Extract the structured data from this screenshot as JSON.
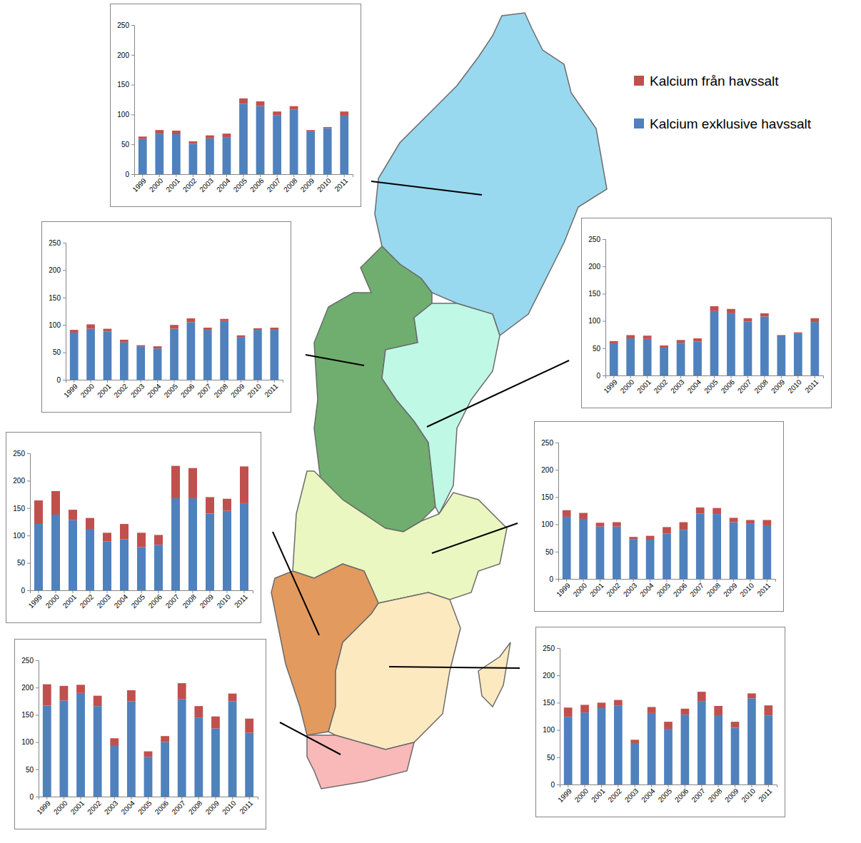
{
  "chart_data": [
    {
      "type": "bar",
      "stacked": true,
      "categories": [
        "1999",
        "2000",
        "2001",
        "2002",
        "2003",
        "2004",
        "2005",
        "2006",
        "2007",
        "2008",
        "2009",
        "2010",
        "2011"
      ],
      "ylim": [
        0,
        250
      ],
      "yticks": [
        0,
        50,
        100,
        150,
        200,
        250
      ],
      "series": [
        {
          "name": "Kalcium exklusive havssalt",
          "color": "#4f81bd",
          "values": [
            59,
            68,
            67,
            51,
            60,
            62,
            118,
            114,
            99,
            108,
            72,
            77,
            98
          ]
        },
        {
          "name": "Kalcium från havssalt",
          "color": "#c0504d",
          "values": [
            4,
            6,
            6,
            4,
            5,
            6,
            9,
            8,
            6,
            6,
            2,
            2,
            7
          ]
        }
      ]
    },
    {
      "type": "bar",
      "stacked": true,
      "categories": [
        "1999",
        "2000",
        "2001",
        "2002",
        "2003",
        "2004",
        "2005",
        "2006",
        "2007",
        "2008",
        "2009",
        "2010",
        "2011"
      ],
      "ylim": [
        0,
        250
      ],
      "yticks": [
        0,
        50,
        100,
        150,
        200,
        250
      ],
      "series": [
        {
          "color": "#4f81bd",
          "values": [
            59,
            68,
            67,
            51,
            60,
            62,
            118,
            114,
            99,
            108,
            72,
            77,
            98
          ]
        },
        {
          "color": "#c0504d",
          "values": [
            4,
            6,
            6,
            4,
            5,
            6,
            9,
            8,
            6,
            6,
            2,
            2,
            7
          ]
        }
      ]
    },
    {
      "type": "bar",
      "stacked": true,
      "categories": [
        "1999",
        "2000",
        "2001",
        "2002",
        "2003",
        "2004",
        "2005",
        "2006",
        "2007",
        "2008",
        "2009",
        "2010",
        "2011"
      ],
      "ylim": [
        0,
        250
      ],
      "yticks": [
        0,
        50,
        100,
        150,
        200,
        250
      ],
      "series": [
        {
          "color": "#4f81bd",
          "values": [
            86,
            93,
            88,
            68,
            61,
            57,
            93,
            105,
            91,
            107,
            78,
            91,
            91
          ]
        },
        {
          "color": "#c0504d",
          "values": [
            5,
            8,
            5,
            5,
            2,
            4,
            7,
            7,
            4,
            4,
            3,
            3,
            4
          ]
        }
      ]
    },
    {
      "type": "bar",
      "stacked": true,
      "categories": [
        "1999",
        "2000",
        "2001",
        "2002",
        "2003",
        "2004",
        "2005",
        "2006",
        "2007",
        "2008",
        "2009",
        "2010",
        "2011"
      ],
      "ylim": [
        0,
        250
      ],
      "yticks": [
        0,
        50,
        100,
        150,
        200,
        250
      ],
      "series": [
        {
          "color": "#4f81bd",
          "values": [
            114,
            110,
            96,
            96,
            73,
            72,
            83,
            90,
            120,
            119,
            104,
            102,
            97
          ]
        },
        {
          "color": "#c0504d",
          "values": [
            12,
            11,
            7,
            8,
            4,
            7,
            12,
            14,
            11,
            11,
            8,
            6,
            11
          ]
        }
      ]
    },
    {
      "type": "bar",
      "stacked": true,
      "categories": [
        "1999",
        "2000",
        "2001",
        "2002",
        "2003",
        "2004",
        "2005",
        "2006",
        "2007",
        "2008",
        "2009",
        "2010",
        "2011"
      ],
      "ylim": [
        0,
        250
      ],
      "yticks": [
        0,
        50,
        100,
        150,
        200,
        250
      ],
      "series": [
        {
          "color": "#4f81bd",
          "values": [
            121,
            138,
            128,
            112,
            89,
            93,
            79,
            83,
            168,
            168,
            140,
            145,
            159
          ]
        },
        {
          "color": "#c0504d",
          "values": [
            43,
            43,
            19,
            20,
            16,
            28,
            26,
            18,
            59,
            55,
            30,
            22,
            67
          ]
        }
      ]
    },
    {
      "type": "bar",
      "stacked": true,
      "categories": [
        "1999",
        "2000",
        "2001",
        "2002",
        "2003",
        "2004",
        "2005",
        "2006",
        "2007",
        "2008",
        "2009",
        "2010",
        "2011"
      ],
      "ylim": [
        0,
        250
      ],
      "yticks": [
        0,
        50,
        100,
        150,
        200,
        250
      ],
      "series": [
        {
          "color": "#4f81bd",
          "values": [
            167,
            176,
            190,
            166,
            93,
            175,
            73,
            100,
            179,
            145,
            125,
            175,
            117
          ]
        },
        {
          "color": "#c0504d",
          "values": [
            39,
            27,
            15,
            19,
            14,
            20,
            10,
            11,
            29,
            21,
            22,
            14,
            26
          ]
        }
      ]
    },
    {
      "type": "bar",
      "stacked": true,
      "categories": [
        "1999",
        "2000",
        "2001",
        "2002",
        "2003",
        "2004",
        "2005",
        "2006",
        "2007",
        "2008",
        "2009",
        "2010",
        "2011"
      ],
      "ylim": [
        0,
        250
      ],
      "yticks": [
        0,
        50,
        100,
        150,
        200,
        250
      ],
      "series": [
        {
          "color": "#4f81bd",
          "values": [
            124,
            132,
            140,
            145,
            76,
            131,
            102,
            128,
            153,
            127,
            104,
            158,
            126
          ]
        },
        {
          "color": "#c0504d",
          "values": [
            17,
            14,
            10,
            10,
            6,
            11,
            13,
            11,
            17,
            17,
            11,
            9,
            19
          ]
        }
      ]
    }
  ]
}
